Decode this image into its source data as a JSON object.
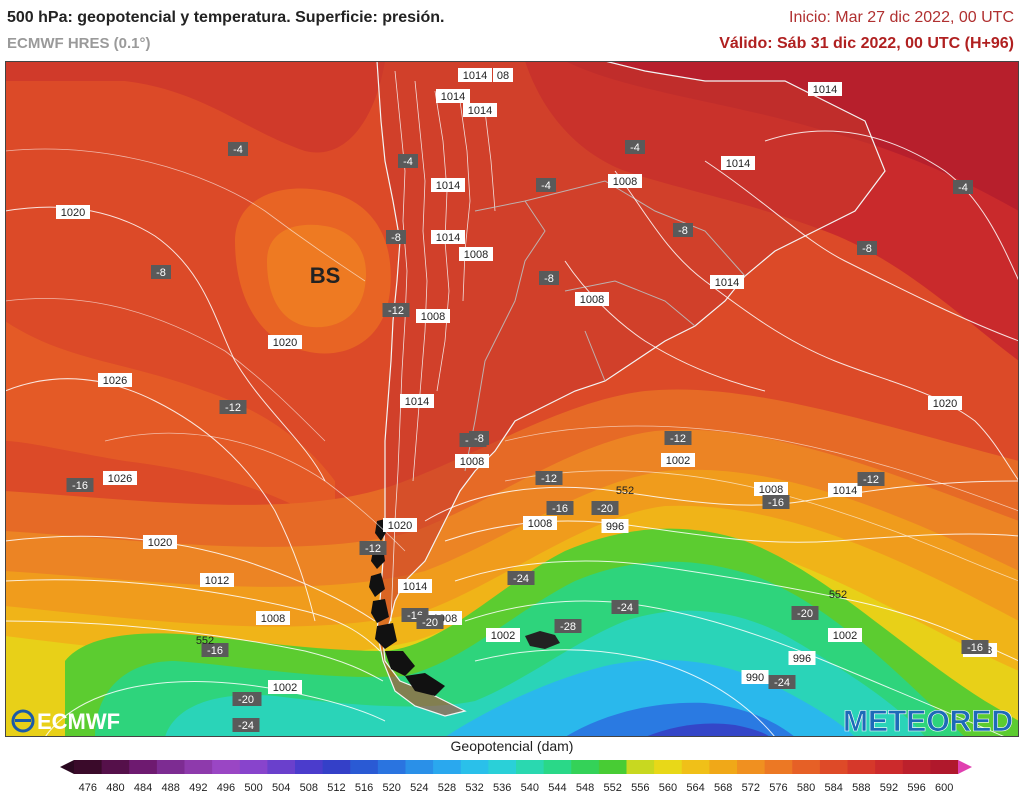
{
  "header": {
    "title": "500 hPa: geopotencial y temperatura. Superficie: presión.",
    "model": "ECMWF HRES (0.1°)",
    "init": "Inicio: Mar 27 dic 2022, 00 UTC",
    "valid": "Válido: Sáb 31 dic 2022, 00 UTC (H+96)"
  },
  "map": {
    "marker_label": "BS",
    "pressure_labels": [
      "1014",
      "08",
      "1014",
      "1014",
      "1014",
      "1014",
      "1008",
      "1014",
      "1020",
      "1014",
      "1008",
      "1008",
      "1008",
      "1020",
      "1026",
      "1014",
      "1008",
      "1014",
      "1002",
      "1026",
      "1020",
      "1008",
      "1014",
      "1012",
      "1002",
      "1020",
      "1014",
      "1008",
      "1008",
      "1002",
      "996",
      "996",
      "990",
      "1002",
      "1008",
      "1014",
      "1002",
      "1020",
      "1008"
    ],
    "temp_labels": [
      "-4",
      "-4",
      "-4",
      "-4",
      "-4",
      "-8",
      "-8",
      "-8",
      "-8",
      "-8",
      "-12",
      "-12",
      "-12",
      "-8",
      "-12",
      "-12",
      "-12",
      "-16",
      "-16",
      "-16",
      "-20",
      "-16",
      "-12",
      "-16",
      "-20",
      "-20",
      "-24",
      "-24",
      "-28",
      "-20",
      "-24",
      "-16",
      "-20",
      "-24"
    ],
    "contour_labels": [
      "552",
      "552",
      "552"
    ],
    "logo_left": "ECMWF",
    "logo_right": "METEORED"
  },
  "legend": {
    "title": "Geopotencial (dam)",
    "ticks": [
      "476",
      "480",
      "484",
      "488",
      "492",
      "496",
      "500",
      "504",
      "508",
      "512",
      "516",
      "520",
      "524",
      "528",
      "532",
      "536",
      "540",
      "544",
      "548",
      "552",
      "556",
      "560",
      "564",
      "568",
      "572",
      "576",
      "580",
      "584",
      "588",
      "592",
      "596",
      "600"
    ],
    "colors": [
      "#3a0a2a",
      "#55104a",
      "#6e1a70",
      "#7d2c92",
      "#8e3aac",
      "#9a46c4",
      "#8844cc",
      "#6a40cc",
      "#4b3ccc",
      "#3440c8",
      "#2a5ad4",
      "#2a74e0",
      "#2a90e8",
      "#2aa8ee",
      "#2ac0ea",
      "#2ad0d8",
      "#2ad8b0",
      "#2ad888",
      "#34d258",
      "#48cc34",
      "#c8d820",
      "#e8d818",
      "#f0c018",
      "#f0a818",
      "#f09020",
      "#ec7824",
      "#e66026",
      "#de4a28",
      "#d6382a",
      "#cc2a2c",
      "#bc202c",
      "#b0182c"
    ],
    "end_left_color": "#2a0820",
    "end_right_color": "#e040b0"
  }
}
